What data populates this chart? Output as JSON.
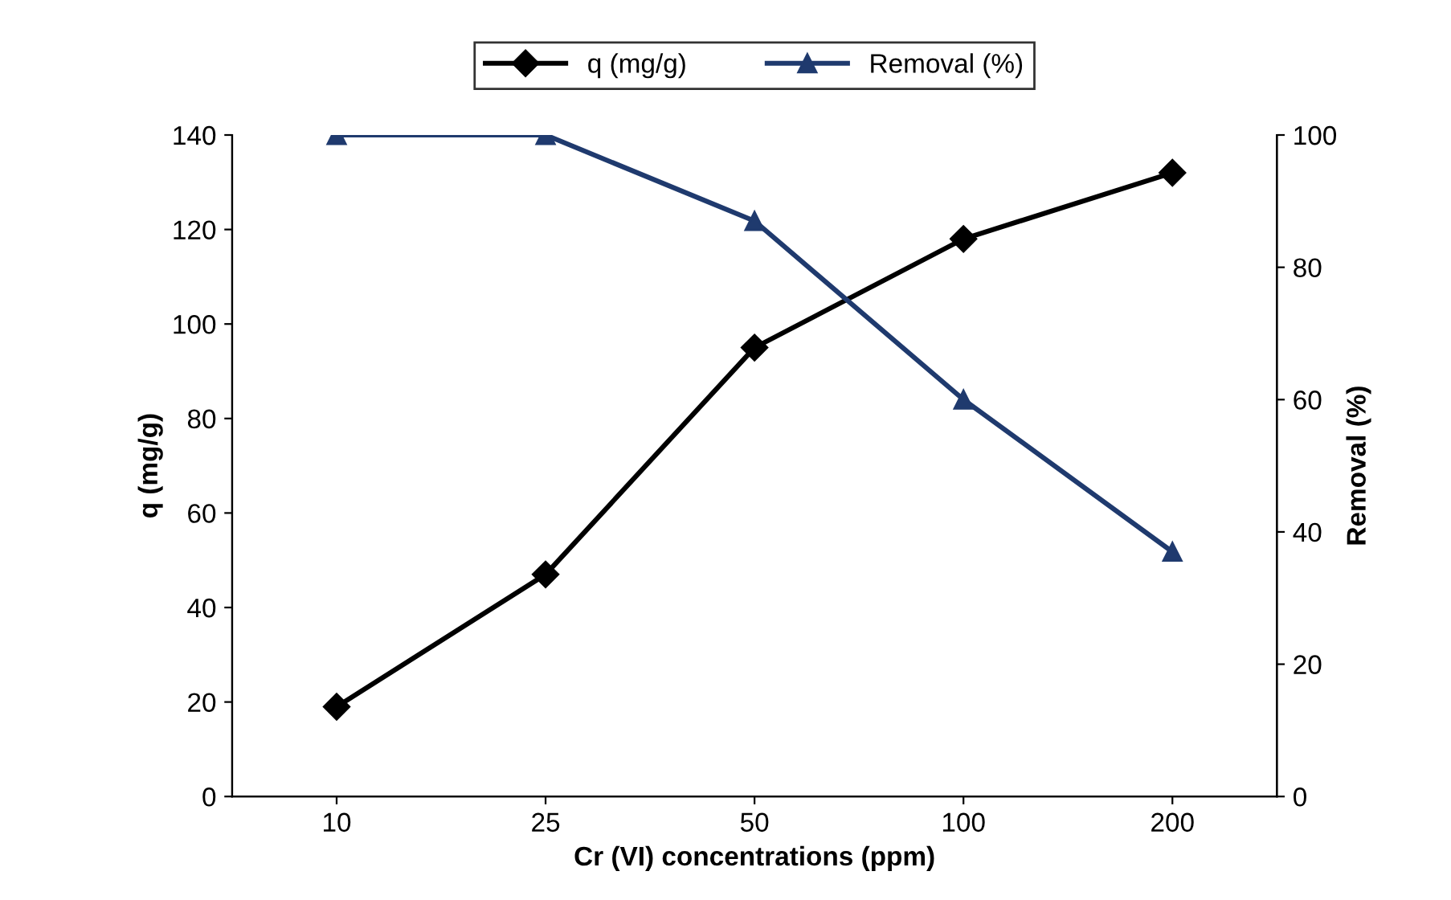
{
  "chart_data": {
    "type": "line",
    "xlabel": "Cr (VI) concentrations (ppm)",
    "ylabel": "q (mg/g)",
    "y2label": "Removal (%)",
    "categories": [
      "10",
      "25",
      "50",
      "100",
      "200"
    ],
    "series": [
      {
        "name": "q (mg/g)",
        "color": "#000000",
        "marker": "diamond",
        "values": [
          19,
          47,
          95,
          118,
          132
        ]
      },
      {
        "name": "Removal (%)",
        "color": "#1f3a6e",
        "marker": "triangle",
        "axis": "y2",
        "values": [
          100,
          100,
          87,
          60,
          37
        ]
      }
    ],
    "ylim": [
      0,
      140
    ],
    "yticks": [
      0,
      20,
      40,
      60,
      80,
      100,
      120,
      140
    ],
    "y2lim": [
      0,
      100
    ],
    "y2ticks": [
      0,
      20,
      40,
      60,
      80,
      100
    ],
    "grid": false,
    "legend": "top",
    "line_style": "solid"
  }
}
